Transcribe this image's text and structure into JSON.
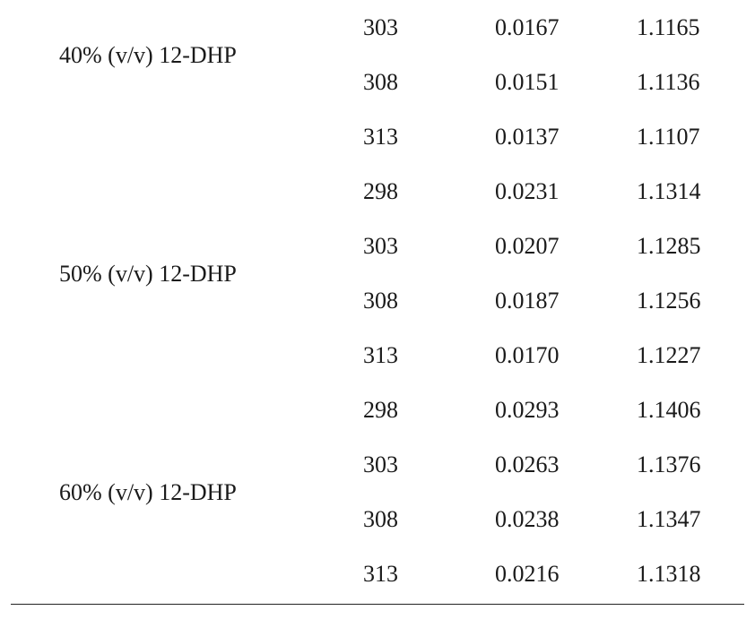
{
  "table": {
    "groups": [
      {
        "label": "40% (v/v) 12-DHP",
        "rows": [
          [
            "303",
            "0.0167",
            "1.1165"
          ],
          [
            "308",
            "0.0151",
            "1.1136"
          ],
          [
            "313",
            "0.0137",
            "1.1107"
          ]
        ]
      },
      {
        "label": "50% (v/v) 12-DHP",
        "rows": [
          [
            "298",
            "0.0231",
            "1.1314"
          ],
          [
            "303",
            "0.0207",
            "1.1285"
          ],
          [
            "308",
            "0.0187",
            "1.1256"
          ],
          [
            "313",
            "0.0170",
            "1.1227"
          ]
        ]
      },
      {
        "label": "60% (v/v) 12-DHP",
        "rows": [
          [
            "298",
            "0.0293",
            "1.1406"
          ],
          [
            "303",
            "0.0263",
            "1.1376"
          ],
          [
            "308",
            "0.0238",
            "1.1347"
          ],
          [
            "313",
            "0.0216",
            "1.1318"
          ]
        ]
      }
    ]
  }
}
